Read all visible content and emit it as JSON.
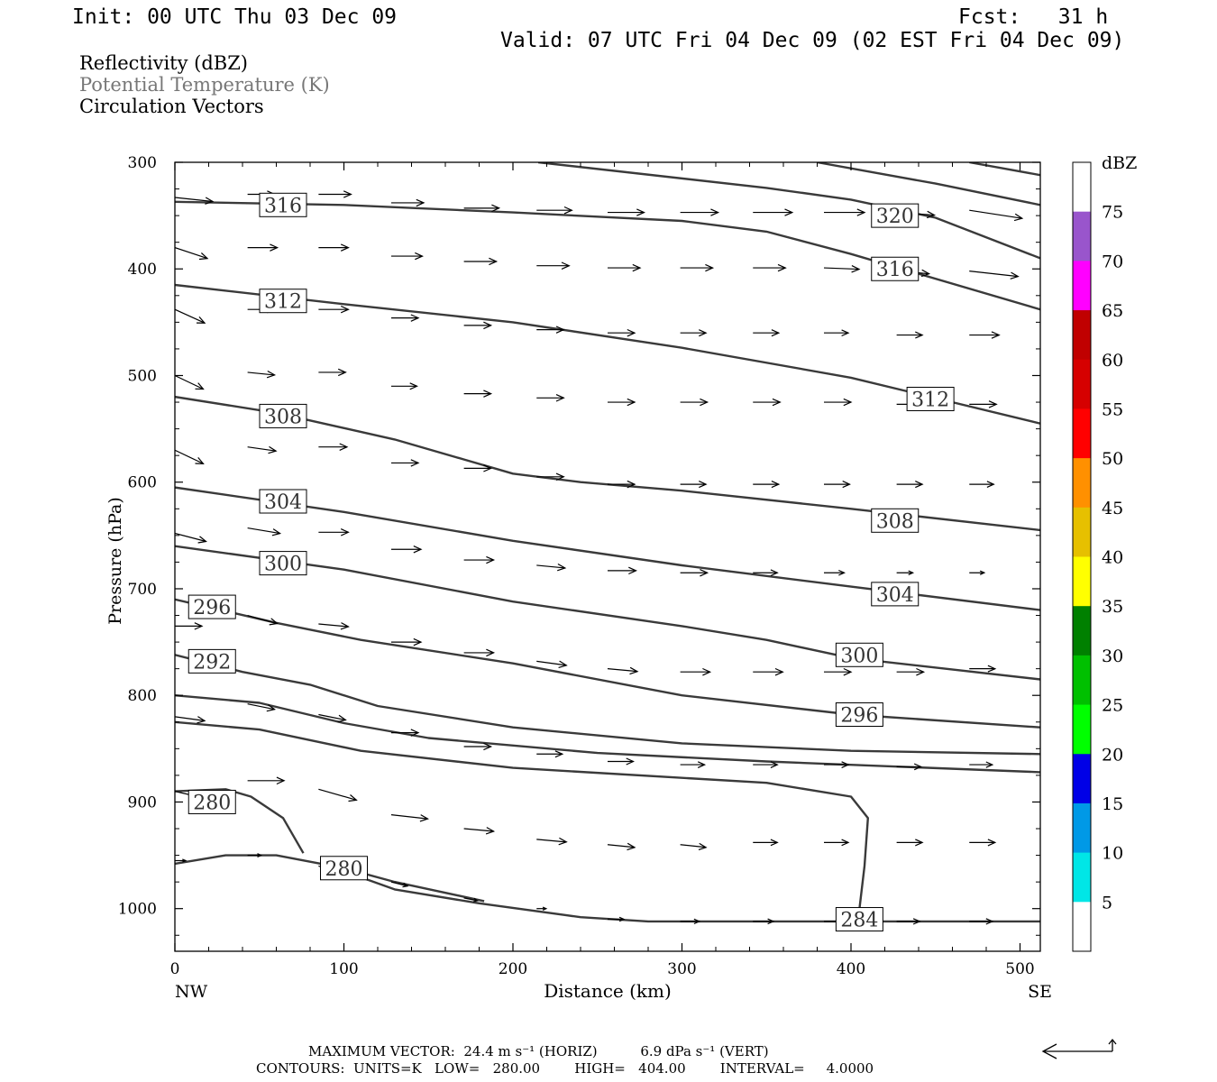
{
  "header": {
    "init": "Init: 00 UTC Thu 03 Dec 09",
    "fcst": "Fcst:   31 h",
    "valid": "Valid: 07 UTC Fri 04 Dec 09 (02 EST Fri 04 Dec 09)"
  },
  "legend_titles": {
    "reflectivity": "Reflectivity (dBZ)",
    "theta": "Potential Temperature (K)",
    "circulation": "Circulation Vectors"
  },
  "colors": {
    "contour": "#3a3a3a",
    "theta_title": "#777777",
    "frame": "#000000"
  },
  "colorbar": {
    "unit": "dBZ",
    "labels": [
      "5",
      "10",
      "15",
      "20",
      "25",
      "30",
      "35",
      "40",
      "45",
      "50",
      "55",
      "60",
      "65",
      "70",
      "75"
    ],
    "colors": [
      "#ffffff",
      "#00e6e6",
      "#0099e6",
      "#0000e6",
      "#00ff00",
      "#00c000",
      "#008000",
      "#ffff00",
      "#e6c000",
      "#ff9000",
      "#ff0000",
      "#d60000",
      "#c00000",
      "#ff00ff",
      "#9955cc",
      "#ffffff"
    ]
  },
  "footer": {
    "max_vector": "MAXIMUM VECTOR:  24.4 m s⁻¹ (HORIZ)          6.9 dPa s⁻¹ (VERT)",
    "contours": "CONTOURS:  UNITS=K   LOW=   280.00        HIGH=   404.00        INTERVAL=     4.0000"
  },
  "chart_data": {
    "type": "line",
    "title": "",
    "xlabel": "Distance (km)",
    "ylabel": "Pressure (hPa)",
    "xlim": [
      0,
      512
    ],
    "ylim": [
      300,
      1040
    ],
    "y_log": false,
    "x_ticks": [
      "0",
      "100",
      "200",
      "300",
      "400",
      "500"
    ],
    "y_ticks": [
      "300",
      "400",
      "500",
      "600",
      "700",
      "800",
      "900",
      "1000"
    ],
    "x_end_labels": {
      "left": "NW",
      "right": "SE"
    },
    "contour_levels": [
      "280",
      "284",
      "292",
      "296",
      "300",
      "304",
      "308",
      "312",
      "316",
      "320"
    ],
    "contours": [
      {
        "level": 320,
        "points": [
          [
            215,
            300
          ],
          [
            350,
            324
          ],
          [
            400,
            335
          ],
          [
            450,
            352
          ],
          [
            512,
            390
          ]
        ]
      },
      {
        "level": 324,
        "points": [
          [
            380,
            300
          ],
          [
            450,
            320
          ],
          [
            512,
            340
          ]
        ]
      },
      {
        "level": 328,
        "points": [
          [
            470,
            300
          ],
          [
            512,
            312
          ]
        ]
      },
      {
        "level": 316,
        "points": [
          [
            0,
            337
          ],
          [
            100,
            340
          ],
          [
            200,
            347
          ],
          [
            300,
            355
          ],
          [
            350,
            365
          ],
          [
            400,
            386
          ],
          [
            512,
            438
          ]
        ]
      },
      {
        "level": 312,
        "points": [
          [
            0,
            415
          ],
          [
            100,
            433
          ],
          [
            200,
            450
          ],
          [
            300,
            474
          ],
          [
            400,
            502
          ],
          [
            512,
            545
          ]
        ]
      },
      {
        "level": 308,
        "points": [
          [
            0,
            520
          ],
          [
            60,
            535
          ],
          [
            130,
            560
          ],
          [
            200,
            592
          ],
          [
            240,
            600
          ],
          [
            300,
            608
          ],
          [
            400,
            625
          ],
          [
            512,
            645
          ]
        ]
      },
      {
        "level": 304,
        "points": [
          [
            0,
            605
          ],
          [
            100,
            628
          ],
          [
            200,
            655
          ],
          [
            300,
            678
          ],
          [
            400,
            698
          ],
          [
            512,
            720
          ]
        ]
      },
      {
        "level": 300,
        "points": [
          [
            0,
            660
          ],
          [
            100,
            682
          ],
          [
            200,
            712
          ],
          [
            300,
            735
          ],
          [
            350,
            748
          ],
          [
            400,
            765
          ],
          [
            512,
            785
          ]
        ]
      },
      {
        "level": 296,
        "points": [
          [
            0,
            710
          ],
          [
            60,
            732
          ],
          [
            110,
            748
          ],
          [
            200,
            770
          ],
          [
            300,
            800
          ],
          [
            400,
            818
          ],
          [
            512,
            830
          ]
        ]
      },
      {
        "level": 292,
        "points": [
          [
            0,
            762
          ],
          [
            40,
            778
          ],
          [
            80,
            790
          ],
          [
            120,
            810
          ],
          [
            200,
            830
          ],
          [
            300,
            845
          ],
          [
            400,
            852
          ],
          [
            512,
            855
          ]
        ]
      },
      {
        "level": 288,
        "points": [
          [
            0,
            800
          ],
          [
            50,
            807
          ],
          [
            100,
            826
          ],
          [
            150,
            840
          ],
          [
            250,
            854
          ],
          [
            350,
            862
          ],
          [
            512,
            872
          ]
        ]
      },
      {
        "level": 284,
        "points": [
          [
            0,
            825
          ],
          [
            50,
            832
          ],
          [
            110,
            852
          ],
          [
            200,
            868
          ],
          [
            350,
            882
          ],
          [
            400,
            895
          ],
          [
            410,
            915
          ],
          [
            408,
            960
          ],
          [
            405,
            1000
          ]
        ]
      },
      {
        "level": 280,
        "points": [
          [
            0,
            890
          ],
          [
            30,
            888
          ],
          [
            45,
            895
          ],
          [
            64,
            915
          ],
          [
            76,
            948
          ]
        ]
      },
      {
        "level": 280,
        "points": [
          [
            0,
            958
          ],
          [
            30,
            950
          ],
          [
            60,
            950
          ],
          [
            100,
            962
          ],
          [
            130,
            975
          ],
          [
            183,
            993
          ]
        ]
      },
      {
        "level": 280,
        "points": [
          [
            100,
            965
          ],
          [
            130,
            982
          ],
          [
            180,
            995
          ],
          [
            240,
            1008
          ],
          [
            280,
            1012
          ],
          [
            512,
            1012
          ]
        ]
      }
    ],
    "contour_labels": [
      {
        "text": "316",
        "x": 64,
        "y": 340
      },
      {
        "text": "312",
        "x": 64,
        "y": 430
      },
      {
        "text": "308",
        "x": 64,
        "y": 538
      },
      {
        "text": "304",
        "x": 64,
        "y": 618
      },
      {
        "text": "300",
        "x": 64,
        "y": 676
      },
      {
        "text": "296",
        "x": 22,
        "y": 717
      },
      {
        "text": "292",
        "x": 22,
        "y": 768
      },
      {
        "text": "280",
        "x": 22,
        "y": 900
      },
      {
        "text": "280",
        "x": 100,
        "y": 962
      },
      {
        "text": "320",
        "x": 426,
        "y": 350
      },
      {
        "text": "316",
        "x": 426,
        "y": 400
      },
      {
        "text": "312",
        "x": 447,
        "y": 522
      },
      {
        "text": "308",
        "x": 426,
        "y": 636
      },
      {
        "text": "304",
        "x": 426,
        "y": 705
      },
      {
        "text": "300",
        "x": 405,
        "y": 762
      },
      {
        "text": "296",
        "x": 405,
        "y": 818
      },
      {
        "text": "284",
        "x": 405,
        "y": 1010
      }
    ],
    "vectors": [
      {
        "x": 0,
        "y": 333,
        "u": 28,
        "v": 3
      },
      {
        "x": 43,
        "y": 330,
        "u": 20,
        "v": 0
      },
      {
        "x": 85,
        "y": 330,
        "u": 24,
        "v": 0
      },
      {
        "x": 128,
        "y": 338,
        "u": 24,
        "v": 0
      },
      {
        "x": 171,
        "y": 343,
        "u": 26,
        "v": 0
      },
      {
        "x": 214,
        "y": 345,
        "u": 26,
        "v": 0
      },
      {
        "x": 256,
        "y": 347,
        "u": 27,
        "v": 0
      },
      {
        "x": 299,
        "y": 347,
        "u": 28,
        "v": 0
      },
      {
        "x": 342,
        "y": 347,
        "u": 29,
        "v": 0
      },
      {
        "x": 384,
        "y": 347,
        "u": 30,
        "v": 0
      },
      {
        "x": 427,
        "y": 347,
        "u": 28,
        "v": 2
      },
      {
        "x": 470,
        "y": 345,
        "u": 39,
        "v": 6
      },
      {
        "x": 0,
        "y": 380,
        "u": 24,
        "v": 8
      },
      {
        "x": 43,
        "y": 380,
        "u": 22,
        "v": 0
      },
      {
        "x": 85,
        "y": 380,
        "u": 22,
        "v": 0
      },
      {
        "x": 128,
        "y": 388,
        "u": 23,
        "v": 0
      },
      {
        "x": 171,
        "y": 393,
        "u": 24,
        "v": 0
      },
      {
        "x": 214,
        "y": 397,
        "u": 24,
        "v": 0
      },
      {
        "x": 256,
        "y": 399,
        "u": 24,
        "v": 0
      },
      {
        "x": 299,
        "y": 399,
        "u": 24,
        "v": 0
      },
      {
        "x": 342,
        "y": 399,
        "u": 24,
        "v": 0
      },
      {
        "x": 384,
        "y": 399,
        "u": 26,
        "v": 1
      },
      {
        "x": 427,
        "y": 402,
        "u": 24,
        "v": 2
      },
      {
        "x": 470,
        "y": 402,
        "u": 36,
        "v": 4
      },
      {
        "x": 0,
        "y": 438,
        "u": 22,
        "v": 10
      },
      {
        "x": 43,
        "y": 438,
        "u": 20,
        "v": 0
      },
      {
        "x": 85,
        "y": 438,
        "u": 22,
        "v": 0
      },
      {
        "x": 128,
        "y": 446,
        "u": 20,
        "v": 0
      },
      {
        "x": 171,
        "y": 453,
        "u": 20,
        "v": 0
      },
      {
        "x": 214,
        "y": 457,
        "u": 20,
        "v": 0
      },
      {
        "x": 256,
        "y": 460,
        "u": 20,
        "v": 0
      },
      {
        "x": 299,
        "y": 460,
        "u": 19,
        "v": 0
      },
      {
        "x": 342,
        "y": 460,
        "u": 19,
        "v": 0
      },
      {
        "x": 384,
        "y": 460,
        "u": 18,
        "v": 0
      },
      {
        "x": 427,
        "y": 462,
        "u": 19,
        "v": 0
      },
      {
        "x": 470,
        "y": 462,
        "u": 22,
        "v": 0
      },
      {
        "x": 0,
        "y": 500,
        "u": 21,
        "v": 10
      },
      {
        "x": 43,
        "y": 497,
        "u": 20,
        "v": 2
      },
      {
        "x": 85,
        "y": 497,
        "u": 20,
        "v": 0
      },
      {
        "x": 128,
        "y": 510,
        "u": 19,
        "v": 0
      },
      {
        "x": 171,
        "y": 517,
        "u": 20,
        "v": 0
      },
      {
        "x": 214,
        "y": 521,
        "u": 20,
        "v": 0
      },
      {
        "x": 256,
        "y": 525,
        "u": 20,
        "v": 0
      },
      {
        "x": 299,
        "y": 525,
        "u": 20,
        "v": 0
      },
      {
        "x": 342,
        "y": 525,
        "u": 20,
        "v": 0
      },
      {
        "x": 384,
        "y": 525,
        "u": 20,
        "v": 0
      },
      {
        "x": 427,
        "y": 527,
        "u": 20,
        "v": 0
      },
      {
        "x": 470,
        "y": 527,
        "u": 20,
        "v": 0
      },
      {
        "x": 0,
        "y": 570,
        "u": 21,
        "v": 10
      },
      {
        "x": 43,
        "y": 567,
        "u": 21,
        "v": 3
      },
      {
        "x": 85,
        "y": 567,
        "u": 21,
        "v": 0
      },
      {
        "x": 128,
        "y": 582,
        "u": 20,
        "v": 0
      },
      {
        "x": 171,
        "y": 587,
        "u": 20,
        "v": 0
      },
      {
        "x": 214,
        "y": 595,
        "u": 20,
        "v": 0
      },
      {
        "x": 256,
        "y": 602,
        "u": 20,
        "v": 0
      },
      {
        "x": 299,
        "y": 602,
        "u": 19,
        "v": 0
      },
      {
        "x": 342,
        "y": 602,
        "u": 19,
        "v": 0
      },
      {
        "x": 384,
        "y": 602,
        "u": 19,
        "v": 0
      },
      {
        "x": 427,
        "y": 602,
        "u": 19,
        "v": 0
      },
      {
        "x": 470,
        "y": 602,
        "u": 18,
        "v": 0
      },
      {
        "x": 0,
        "y": 648,
        "u": 23,
        "v": 6
      },
      {
        "x": 43,
        "y": 643,
        "u": 24,
        "v": 4
      },
      {
        "x": 85,
        "y": 647,
        "u": 22,
        "v": 0
      },
      {
        "x": 128,
        "y": 663,
        "u": 22,
        "v": 0
      },
      {
        "x": 171,
        "y": 673,
        "u": 22,
        "v": 0
      },
      {
        "x": 214,
        "y": 678,
        "u": 21,
        "v": 2
      },
      {
        "x": 256,
        "y": 683,
        "u": 21,
        "v": 0
      },
      {
        "x": 299,
        "y": 685,
        "u": 20,
        "v": 0
      },
      {
        "x": 342,
        "y": 685,
        "u": 18,
        "v": 0
      },
      {
        "x": 384,
        "y": 685,
        "u": 15,
        "v": 0
      },
      {
        "x": 427,
        "y": 685,
        "u": 12,
        "v": 0
      },
      {
        "x": 470,
        "y": 685,
        "u": 11,
        "v": 0
      },
      {
        "x": 0,
        "y": 735,
        "u": 20,
        "v": 0
      },
      {
        "x": 43,
        "y": 725,
        "u": 22,
        "v": 6
      },
      {
        "x": 85,
        "y": 733,
        "u": 22,
        "v": 2
      },
      {
        "x": 128,
        "y": 750,
        "u": 22,
        "v": 0
      },
      {
        "x": 171,
        "y": 760,
        "u": 22,
        "v": 0
      },
      {
        "x": 214,
        "y": 768,
        "u": 22,
        "v": 3
      },
      {
        "x": 256,
        "y": 775,
        "u": 22,
        "v": 2
      },
      {
        "x": 299,
        "y": 778,
        "u": 22,
        "v": 0
      },
      {
        "x": 342,
        "y": 778,
        "u": 22,
        "v": 0
      },
      {
        "x": 384,
        "y": 778,
        "u": 20,
        "v": 0
      },
      {
        "x": 427,
        "y": 778,
        "u": 20,
        "v": 0
      },
      {
        "x": 470,
        "y": 775,
        "u": 19,
        "v": 0
      },
      {
        "x": 0,
        "y": 820,
        "u": 22,
        "v": 3
      },
      {
        "x": 43,
        "y": 808,
        "u": 20,
        "v": 4
      },
      {
        "x": 85,
        "y": 818,
        "u": 20,
        "v": 4
      },
      {
        "x": 128,
        "y": 835,
        "u": 20,
        "v": 0
      },
      {
        "x": 171,
        "y": 848,
        "u": 20,
        "v": 0
      },
      {
        "x": 214,
        "y": 855,
        "u": 19,
        "v": 0
      },
      {
        "x": 256,
        "y": 862,
        "u": 19,
        "v": 0
      },
      {
        "x": 299,
        "y": 865,
        "u": 18,
        "v": 0
      },
      {
        "x": 342,
        "y": 865,
        "u": 18,
        "v": 0
      },
      {
        "x": 384,
        "y": 865,
        "u": 18,
        "v": 0
      },
      {
        "x": 427,
        "y": 867,
        "u": 18,
        "v": 0
      },
      {
        "x": 470,
        "y": 865,
        "u": 17,
        "v": 0
      },
      {
        "x": 0,
        "y": 890,
        "u": 26,
        "v": 6
      },
      {
        "x": 43,
        "y": 880,
        "u": 27,
        "v": 0
      },
      {
        "x": 85,
        "y": 888,
        "u": 28,
        "v": 8
      },
      {
        "x": 128,
        "y": 912,
        "u": 27,
        "v": 3
      },
      {
        "x": 171,
        "y": 925,
        "u": 22,
        "v": 2
      },
      {
        "x": 214,
        "y": 935,
        "u": 22,
        "v": 2
      },
      {
        "x": 256,
        "y": 940,
        "u": 20,
        "v": 2
      },
      {
        "x": 299,
        "y": 940,
        "u": 19,
        "v": 2
      },
      {
        "x": 342,
        "y": 938,
        "u": 18,
        "v": 0
      },
      {
        "x": 384,
        "y": 938,
        "u": 18,
        "v": 0
      },
      {
        "x": 427,
        "y": 938,
        "u": 19,
        "v": 0
      },
      {
        "x": 470,
        "y": 938,
        "u": 19,
        "v": 0
      },
      {
        "x": 0,
        "y": 955,
        "u": 8,
        "v": 0
      },
      {
        "x": 43,
        "y": 950,
        "u": 10,
        "v": 0
      },
      {
        "x": 85,
        "y": 960,
        "u": 12,
        "v": 4
      },
      {
        "x": 128,
        "y": 975,
        "u": 12,
        "v": 3
      },
      {
        "x": 171,
        "y": 990,
        "u": 10,
        "v": 2
      },
      {
        "x": 214,
        "y": 1000,
        "u": 7,
        "v": 0
      },
      {
        "x": 256,
        "y": 1010,
        "u": 12,
        "v": 0
      },
      {
        "x": 299,
        "y": 1012,
        "u": 14,
        "v": 0
      },
      {
        "x": 342,
        "y": 1012,
        "u": 15,
        "v": 0
      },
      {
        "x": 384,
        "y": 1012,
        "u": 16,
        "v": 0
      },
      {
        "x": 427,
        "y": 1012,
        "u": 17,
        "v": 0
      },
      {
        "x": 470,
        "y": 1012,
        "u": 17,
        "v": 0
      }
    ]
  }
}
